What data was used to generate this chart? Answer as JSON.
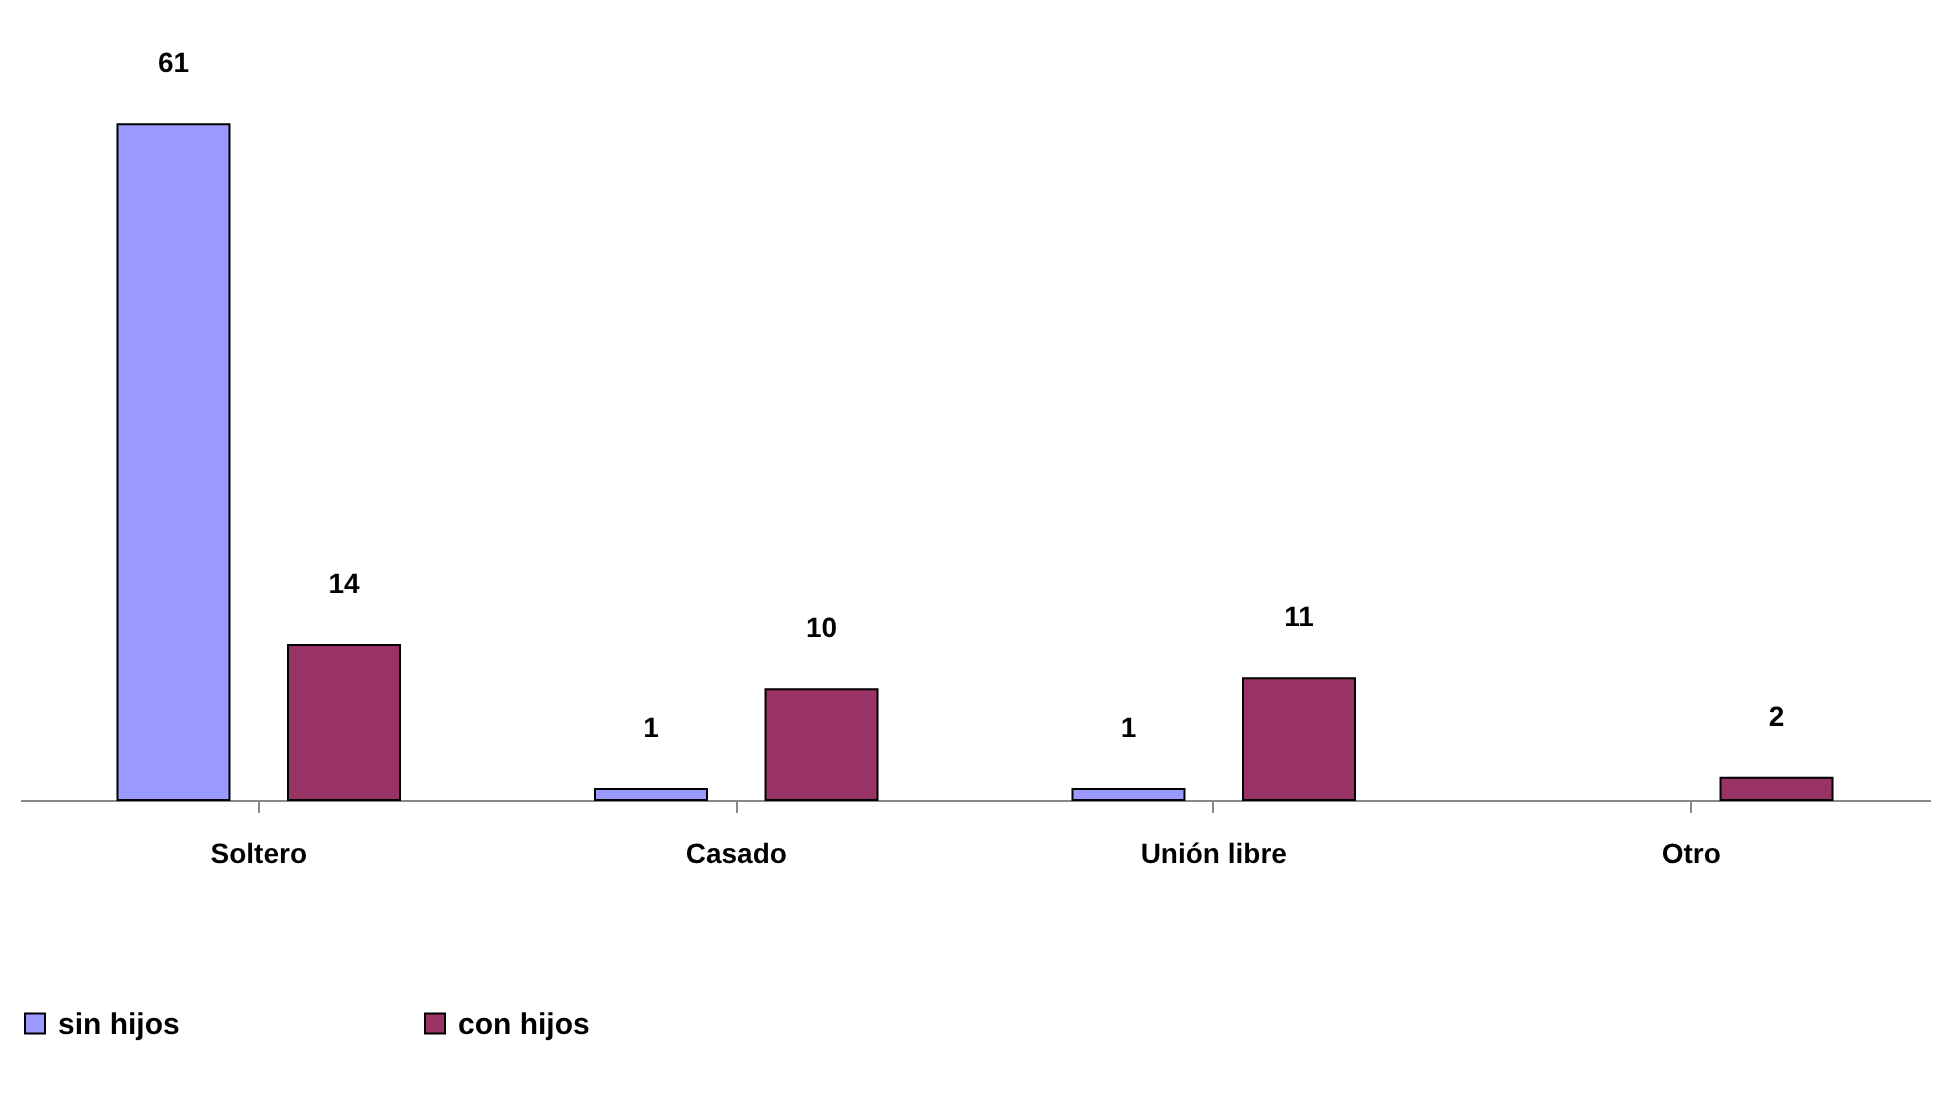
{
  "chart_data": {
    "type": "bar",
    "categories": [
      "Soltero",
      "Casado",
      "Unión libre",
      "Otro"
    ],
    "series": [
      {
        "name": "sin hijos",
        "color": "#9999ff",
        "values": [
          61,
          1,
          1,
          null
        ]
      },
      {
        "name": "con hijos",
        "color": "#993366",
        "values": [
          14,
          10,
          11,
          2
        ]
      }
    ],
    "data_labels": true,
    "legend": "bottom",
    "grid": false
  }
}
